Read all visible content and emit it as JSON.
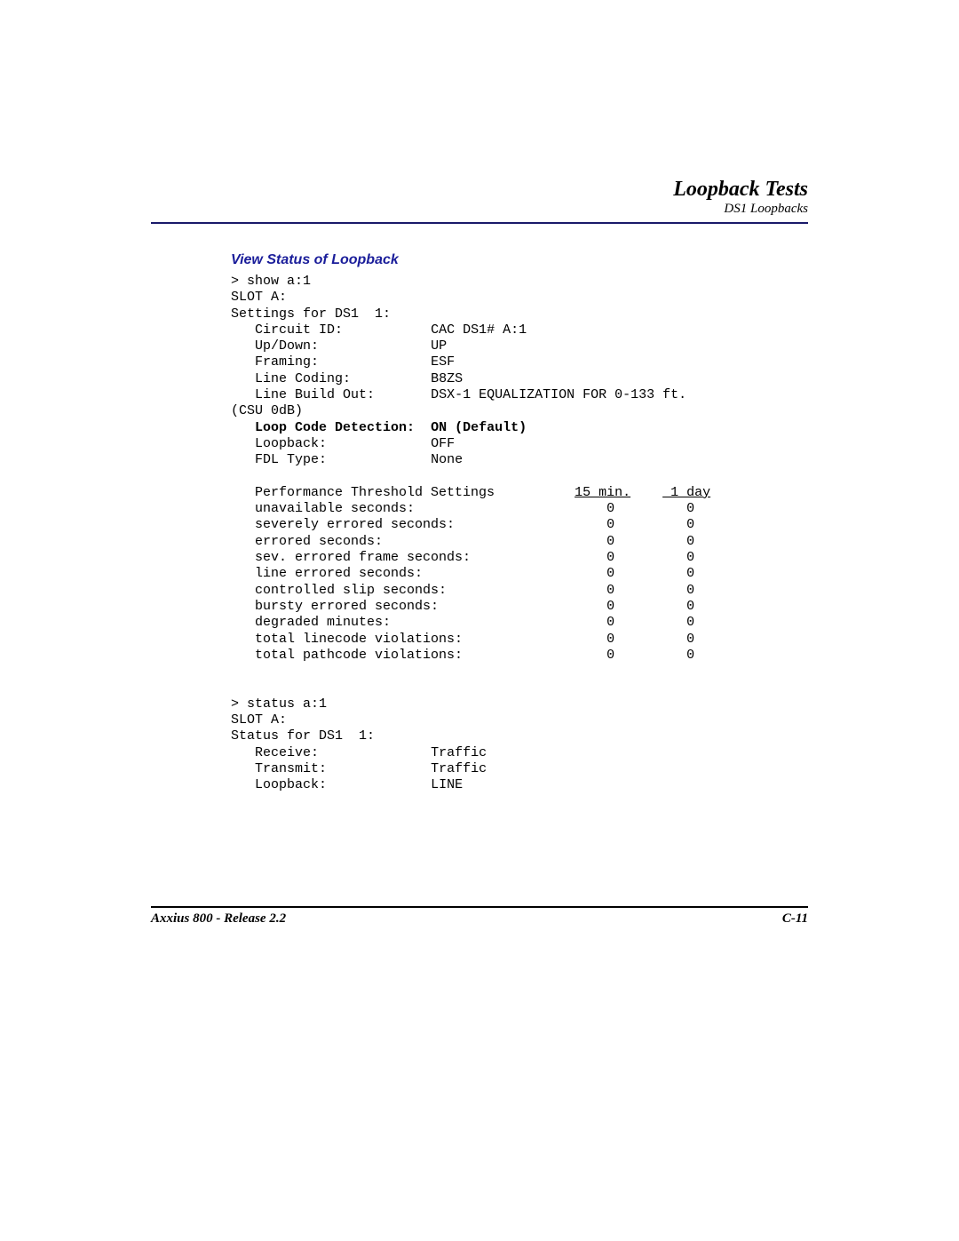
{
  "header": {
    "title": "Loopback Tests",
    "subtitle": "DS1 Loopbacks"
  },
  "section_title": "View Status of Loopback",
  "terminal": {
    "cmd1": "> show a:1",
    "slot_line": "SLOT A:",
    "settings_for": "Settings for DS1  1:",
    "fields": {
      "circuit_id": {
        "label": "Circuit ID:",
        "value": "CAC DS1# A:1"
      },
      "up_down": {
        "label": "Up/Down:",
        "value": "UP"
      },
      "framing": {
        "label": "Framing:",
        "value": "ESF"
      },
      "line_coding": {
        "label": "Line Coding:",
        "value": "B8ZS"
      },
      "lbo": {
        "label": "Line Build Out:",
        "value": "DSX-1 EQUALIZATION FOR 0-133 ft."
      },
      "csu": "(CSU 0dB)",
      "loop_code": {
        "label": "Loop Code Detection:",
        "value": "ON (Default)"
      },
      "loopback": {
        "label": "Loopback:",
        "value": "OFF"
      },
      "fdl": {
        "label": "FDL Type:",
        "value": "None"
      }
    },
    "perf_header": {
      "label": "Performance Threshold Settings",
      "col1": "15 min.",
      "col2": " 1 day"
    },
    "perf_rows": [
      {
        "label": "unavailable seconds:",
        "c1": "0",
        "c2": "0"
      },
      {
        "label": "severely errored seconds:",
        "c1": "0",
        "c2": "0"
      },
      {
        "label": "errored seconds:",
        "c1": "0",
        "c2": "0"
      },
      {
        "label": "sev. errored frame seconds:",
        "c1": "0",
        "c2": "0"
      },
      {
        "label": "line errored seconds:",
        "c1": "0",
        "c2": "0"
      },
      {
        "label": "controlled slip seconds:",
        "c1": "0",
        "c2": "0"
      },
      {
        "label": "bursty errored seconds:",
        "c1": "0",
        "c2": "0"
      },
      {
        "label": "degraded minutes:",
        "c1": "0",
        "c2": "0"
      },
      {
        "label": "total linecode violations:",
        "c1": "0",
        "c2": "0"
      },
      {
        "label": "total pathcode violations:",
        "c1": "0",
        "c2": "0"
      }
    ],
    "cmd2": "> status a:1",
    "slot_line2": "SLOT A:",
    "status_for": "Status for DS1  1:",
    "status_fields": {
      "receive": {
        "label": "Receive:",
        "value": "Traffic"
      },
      "transmit": {
        "label": "Transmit:",
        "value": "Traffic"
      },
      "loopback": {
        "label": "Loopback:",
        "value": "LINE"
      }
    }
  },
  "footer": {
    "left": "Axxius 800 - Release 2.2",
    "right": "C-11"
  },
  "colors": {
    "rule": "#1a1a6a",
    "section_title": "#1a1d9a",
    "text": "#000000",
    "background": "#ffffff"
  },
  "typography": {
    "header_title_pt": 24,
    "header_sub_pt": 15,
    "section_title_pt": 16,
    "mono_pt": 15,
    "footer_pt": 15
  }
}
